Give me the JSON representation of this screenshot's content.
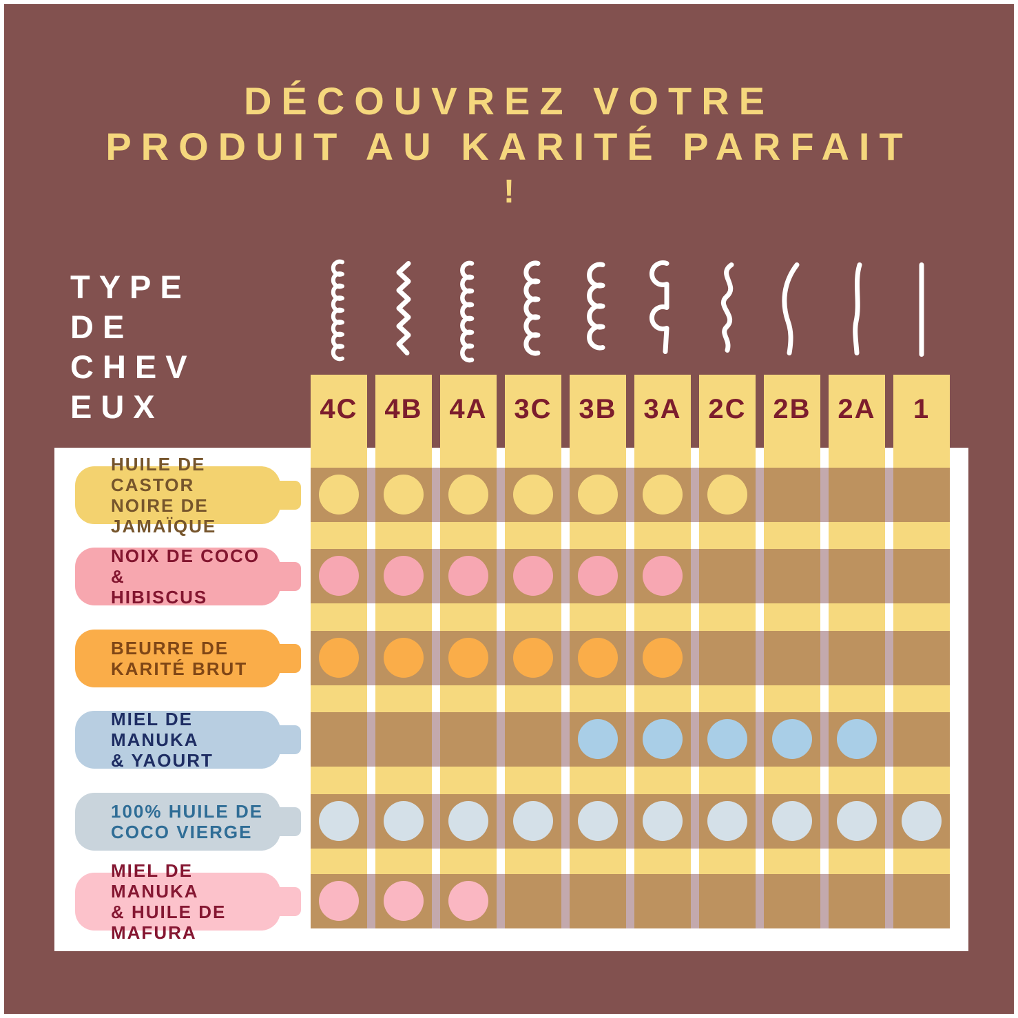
{
  "title": {
    "line1": "DÉCOUVREZ VOTRE",
    "line2": "PRODUIT AU KARITÉ PARFAIT",
    "line3": "!"
  },
  "axis": {
    "label": "TYPE\nDE\nCHEV\nEUX"
  },
  "colors": {
    "background": "#82514F",
    "title_text": "#F5D77D",
    "column_fill": "#F6D97E",
    "column_header_text": "#7C1D2D",
    "row_band_overlay": "rgba(105,40,50,0.4)",
    "panel": "#FFFFFF"
  },
  "columns": [
    {
      "id": "4C",
      "label": "4C",
      "icon": "curl-4c-icon"
    },
    {
      "id": "4B",
      "label": "4B",
      "icon": "curl-4b-icon"
    },
    {
      "id": "4A",
      "label": "4A",
      "icon": "curl-4a-icon"
    },
    {
      "id": "3C",
      "label": "3C",
      "icon": "curl-3c-icon"
    },
    {
      "id": "3B",
      "label": "3B",
      "icon": "curl-3b-icon"
    },
    {
      "id": "3A",
      "label": "3A",
      "icon": "curl-3a-icon"
    },
    {
      "id": "2C",
      "label": "2C",
      "icon": "curl-2c-icon"
    },
    {
      "id": "2B",
      "label": "2B",
      "icon": "curl-2b-icon"
    },
    {
      "id": "2A",
      "label": "2A",
      "icon": "curl-2a-icon"
    },
    {
      "id": "1",
      "label": "1",
      "icon": "straight-hair-icon"
    }
  ],
  "rows": [
    {
      "id": "castor",
      "label": "HUILE DE CASTOR\nNOIRE DE JAMAÏQUE",
      "pill_color": "#F3D26F",
      "text_color": "#76552C",
      "dot_color": "#F6D97E",
      "dots": [
        "4C",
        "4B",
        "4A",
        "3C",
        "3B",
        "3A",
        "2C"
      ]
    },
    {
      "id": "coco-hibiscus",
      "label": "NOIX DE COCO &\nHIBISCUS",
      "pill_color": "#F7A7AF",
      "text_color": "#82152F",
      "dot_color": "#F7A7B2",
      "dots": [
        "4C",
        "4B",
        "4A",
        "3C",
        "3B",
        "3A"
      ]
    },
    {
      "id": "karite-brut",
      "label": "BEURRE DE\nKARITÉ BRUT",
      "pill_color": "#FAAD49",
      "text_color": "#7F4616",
      "dot_color": "#FAAD49",
      "dots": [
        "4C",
        "4B",
        "4A",
        "3C",
        "3B",
        "3A"
      ]
    },
    {
      "id": "manuka-yaourt",
      "label": "MIEL DE MANUKA\n& YAOURT",
      "pill_color": "#B8CEE1",
      "text_color": "#1E2D63",
      "dot_color": "#A9CEE7",
      "dots": [
        "3B",
        "3A",
        "2C",
        "2B",
        "2A"
      ]
    },
    {
      "id": "coco-vierge",
      "label": "100% HUILE DE\nCOCO VIERGE",
      "pill_color": "#C9D4DC",
      "text_color": "#2F6D96",
      "dot_color": "#D4E0E8",
      "dots": [
        "4C",
        "4B",
        "4A",
        "3C",
        "3B",
        "3A",
        "2C",
        "2B",
        "2A",
        "1"
      ]
    },
    {
      "id": "manuka-mafura",
      "label": "MIEL DE MANUKA\n& HUILE DE MAFURA",
      "pill_color": "#FCC2CB",
      "text_color": "#851732",
      "dot_color": "#FAB7C2",
      "dots": [
        "4C",
        "4B",
        "4A"
      ]
    }
  ],
  "chart_data": {
    "type": "table",
    "title": "DÉCOUVREZ VOTRE PRODUIT AU KARITÉ PARFAIT !",
    "xlabel": "TYPE DE CHEVEUX",
    "columns": [
      "4C",
      "4B",
      "4A",
      "3C",
      "3B",
      "3A",
      "2C",
      "2B",
      "2A",
      "1"
    ],
    "rows": [
      {
        "product": "HUILE DE CASTOR NOIRE DE JAMAÏQUE",
        "suitable_for": [
          "4C",
          "4B",
          "4A",
          "3C",
          "3B",
          "3A",
          "2C"
        ]
      },
      {
        "product": "NOIX DE COCO & HIBISCUS",
        "suitable_for": [
          "4C",
          "4B",
          "4A",
          "3C",
          "3B",
          "3A"
        ]
      },
      {
        "product": "BEURRE DE KARITÉ BRUT",
        "suitable_for": [
          "4C",
          "4B",
          "4A",
          "3C",
          "3B",
          "3A"
        ]
      },
      {
        "product": "MIEL DE MANUKA & YAOURT",
        "suitable_for": [
          "3B",
          "3A",
          "2C",
          "2B",
          "2A"
        ]
      },
      {
        "product": "100% HUILE DE COCO VIERGE",
        "suitable_for": [
          "4C",
          "4B",
          "4A",
          "3C",
          "3B",
          "3A",
          "2C",
          "2B",
          "2A",
          "1"
        ]
      },
      {
        "product": "MIEL DE MANUKA & HUILE DE MAFURA",
        "suitable_for": [
          "4C",
          "4B",
          "4A"
        ]
      }
    ],
    "legend_position": "none",
    "grid": "matrix"
  }
}
